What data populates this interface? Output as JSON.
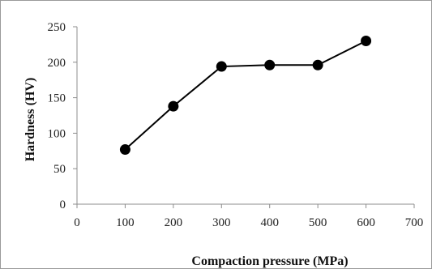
{
  "chart_data": {
    "type": "line",
    "title": "",
    "xlabel": "Compaction pressure (MPa)",
    "ylabel": "Hardness (HV)",
    "xlim": [
      0,
      700
    ],
    "ylim": [
      0,
      250
    ],
    "xticks": [
      0,
      100,
      200,
      300,
      400,
      500,
      600,
      700
    ],
    "yticks": [
      0,
      50,
      100,
      150,
      200,
      250
    ],
    "grid": false,
    "legend": "none",
    "series": [
      {
        "x": [
          100,
          200,
          300,
          400,
          500,
          600
        ],
        "y": [
          77,
          138,
          194,
          196,
          196,
          230
        ],
        "marker": "circle",
        "color": "#000000"
      }
    ]
  }
}
